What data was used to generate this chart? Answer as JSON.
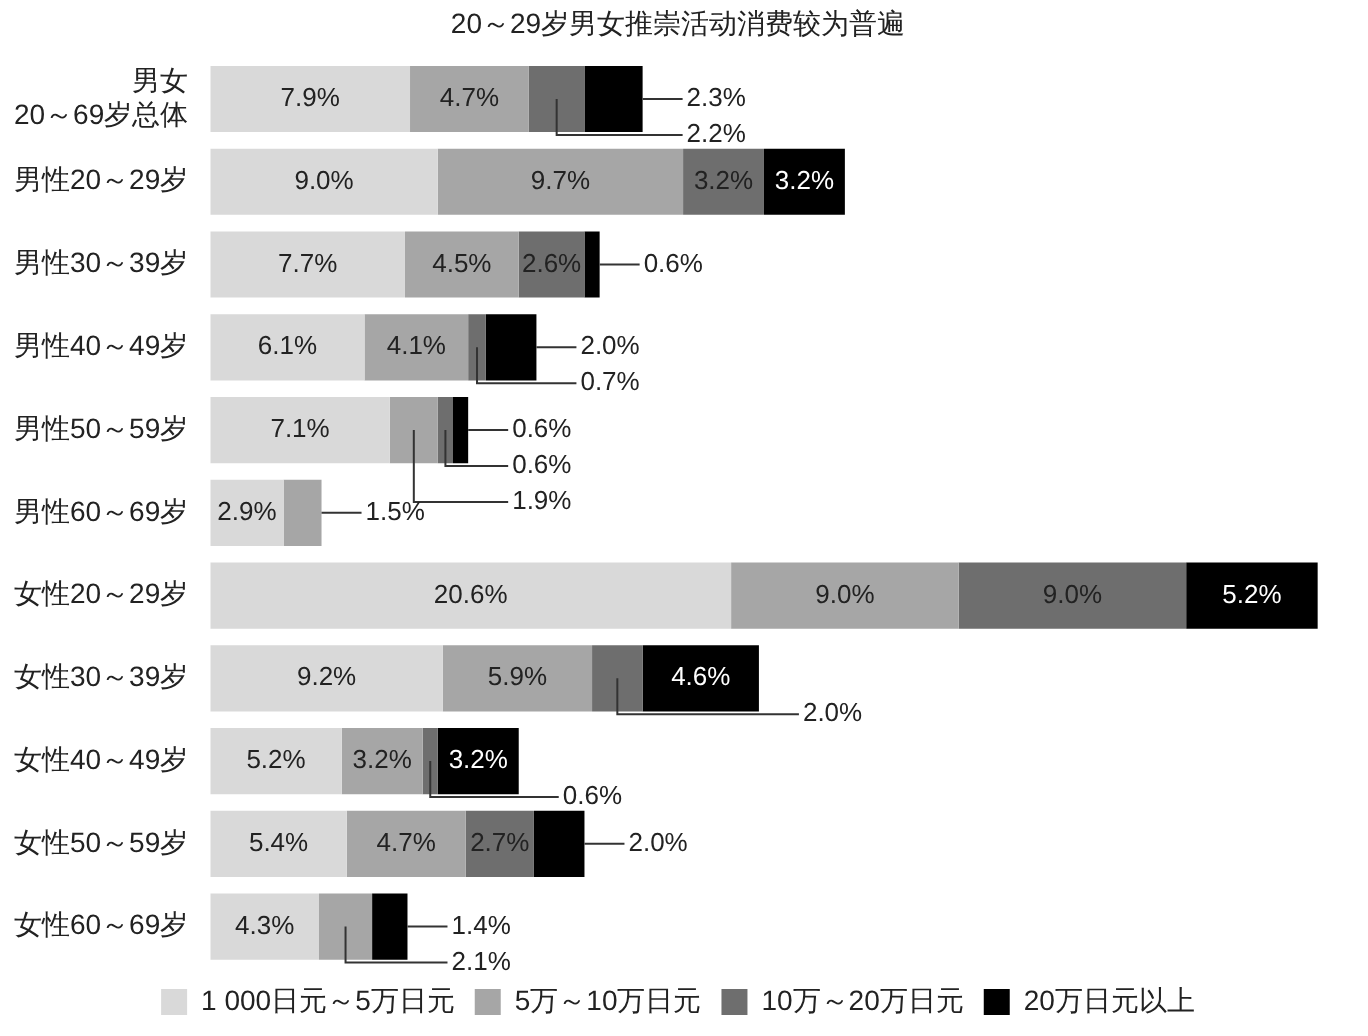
{
  "chart_data": {
    "type": "bar",
    "orientation": "horizontal",
    "stacked": true,
    "title": "20～29岁男女推崇活动消费较为普遍",
    "categories": [
      "男女\n20～69岁总体",
      "男性20～29岁",
      "男性30～39岁",
      "男性40～49岁",
      "男性50～59岁",
      "男性60～69岁",
      "女性20～29岁",
      "女性30～39岁",
      "女性40～49岁",
      "女性50～59岁",
      "女性60～69岁"
    ],
    "legend": "bottom",
    "tick_labels": "y",
    "series": [
      {
        "name": "1 000日元～5万日元",
        "color": "#d9d9d9",
        "values": [
          7.9,
          9.0,
          7.7,
          6.1,
          7.1,
          2.9,
          20.6,
          9.2,
          5.2,
          5.4,
          4.3
        ],
        "value_labels": [
          "7.9%",
          "9.0%",
          "7.7%",
          "6.1%",
          "7.1%",
          "2.9%",
          "20.6%",
          "9.2%",
          "5.2%",
          "5.4%",
          "4.3%"
        ]
      },
      {
        "name": "5万～10万日元",
        "color": "#a6a6a6",
        "values": [
          4.7,
          9.7,
          4.5,
          4.1,
          1.9,
          1.5,
          9.0,
          5.9,
          3.2,
          4.7,
          2.1
        ],
        "value_labels": [
          "4.7%",
          "9.7%",
          "4.5%",
          "4.1%",
          "1.9%",
          "1.5%",
          "9.0%",
          "5.9%",
          "3.2%",
          "4.7%",
          "2.1%"
        ]
      },
      {
        "name": "10万～20万日元",
        "color": "#6e6e6e",
        "values": [
          2.2,
          3.2,
          2.6,
          0.7,
          0.6,
          null,
          9.0,
          2.0,
          0.6,
          2.7,
          null
        ],
        "value_labels": [
          "2.2%",
          "3.2%",
          "2.6%",
          "0.7%",
          "0.6%",
          null,
          "9.0%",
          "2.0%",
          "0.6%",
          "2.7%",
          null
        ]
      },
      {
        "name": "20万日元以上",
        "color": "#000000",
        "values": [
          2.3,
          3.2,
          0.6,
          2.0,
          0.6,
          null,
          5.2,
          4.6,
          3.2,
          2.0,
          1.4
        ],
        "value_labels": [
          "2.3%",
          "3.2%",
          "0.6%",
          "2.0%",
          "0.6%",
          null,
          "5.2%",
          "4.6%",
          "3.2%",
          "2.0%",
          "1.4%"
        ]
      }
    ]
  }
}
